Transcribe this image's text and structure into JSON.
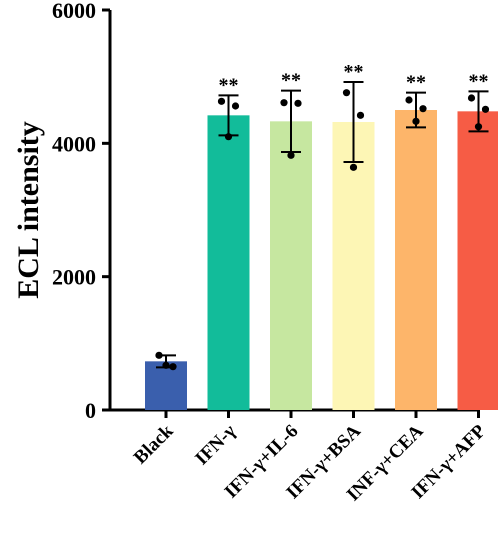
{
  "chart_data": {
    "type": "bar",
    "title": "",
    "xlabel": "",
    "ylabel": "ECL intensity",
    "ylim": [
      0,
      6000
    ],
    "yticks": [
      0,
      2000,
      4000,
      6000
    ],
    "grid": false,
    "categories": [
      "Black",
      "IFN-γ",
      "IFN-γ+IL-6",
      "IFN-γ+BSA",
      "INF-γ+CEA",
      "IFN-γ+AFP"
    ],
    "values": [
      730,
      4420,
      4330,
      4320,
      4500,
      4480
    ],
    "error": [
      90,
      300,
      460,
      600,
      260,
      300
    ],
    "points": [
      [
        820,
        650,
        670
      ],
      [
        4630,
        4560,
        4100
      ],
      [
        4610,
        4600,
        3820
      ],
      [
        4760,
        4420,
        3640
      ],
      [
        4650,
        4520,
        4330
      ],
      [
        4680,
        4510,
        4250
      ]
    ],
    "significance": [
      "",
      "**",
      "**",
      "**",
      "**",
      "**"
    ],
    "colors": [
      "#3a5fad",
      "#12bc9a",
      "#c6e7a0",
      "#fdf6b5",
      "#fdb56a",
      "#f65c45"
    ]
  }
}
